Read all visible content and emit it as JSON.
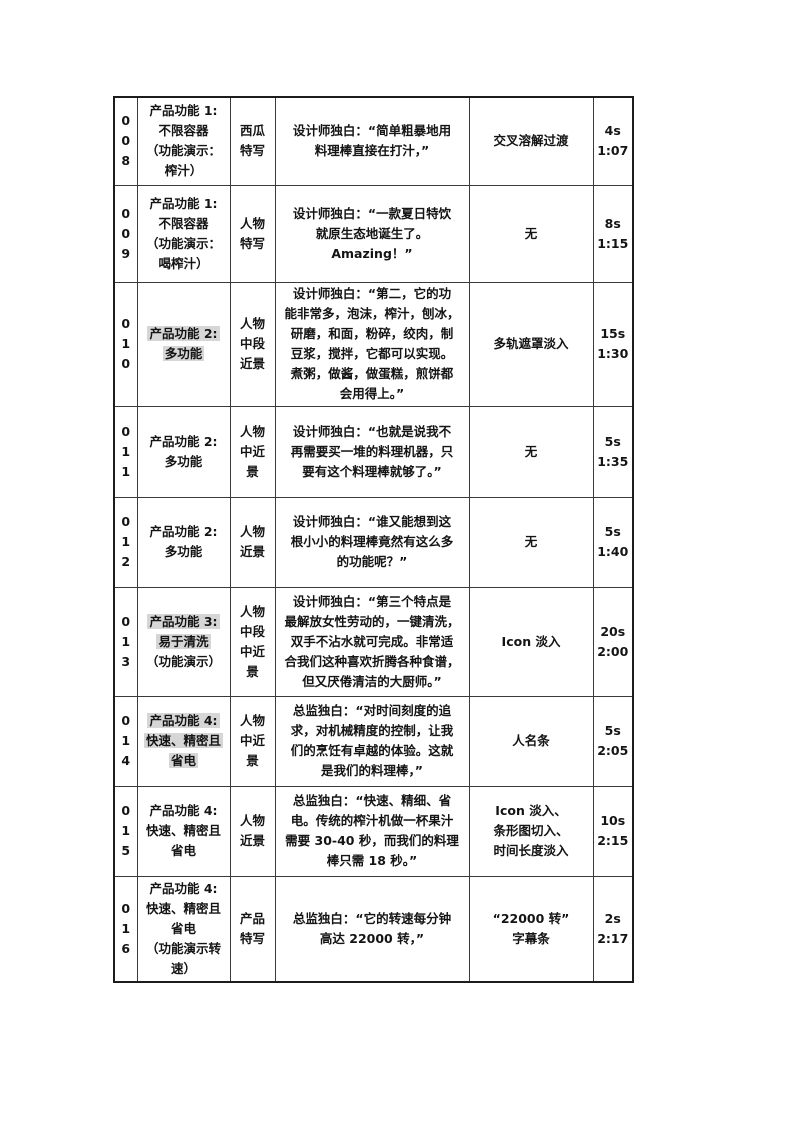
{
  "page": {
    "background": "#ffffff"
  },
  "table": {
    "outer_border_color": "#1c1c1c",
    "inner_border_color": "#3a3a3a",
    "highlight_color": "#d6d6d6",
    "text_color": "#141414",
    "rows": [
      {
        "no": "008",
        "scene": [
          {
            "text": "产品功能 1:",
            "hl": false
          },
          {
            "text": "不限容器",
            "hl": false
          },
          {
            "text": "（功能演示：",
            "hl": false
          },
          {
            "text": "榨汁）",
            "hl": false
          }
        ],
        "shot": "西瓜\n特写",
        "dialogue": "设计师独白：“简单粗暴地用\n料理棒直接在打汁，”",
        "transition": "交叉溶解过渡",
        "duration": "4s",
        "timecode": "1:07"
      },
      {
        "no": "009",
        "scene": [
          {
            "text": "产品功能 1:",
            "hl": false
          },
          {
            "text": "不限容器",
            "hl": false
          },
          {
            "text": "（功能演示：",
            "hl": false
          },
          {
            "text": "喝榨汁）",
            "hl": false
          }
        ],
        "shot": "人物\n特写",
        "dialogue": "设计师独白：“一款夏日特饮\n就原生态地诞生了。\nAmazing！”",
        "transition": "无",
        "duration": "8s",
        "timecode": "1:15"
      },
      {
        "no": "010",
        "scene": [
          {
            "text": "产品功能 2:",
            "hl": true
          },
          {
            "text": "多功能",
            "hl": true
          }
        ],
        "shot": "人物\n中段\n近景",
        "dialogue": "设计师独白：“第二，它的功\n能非常多，泡沫，榨汁，刨冰，\n研磨，和面，粉碎，绞肉，制\n豆浆，搅拌，它都可以实现。\n煮粥，做酱，做蛋糕，煎饼都\n会用得上。”",
        "transition": "多轨遮罩淡入",
        "duration": "15s",
        "timecode": "1:30"
      },
      {
        "no": "011",
        "scene": [
          {
            "text": "产品功能 2:",
            "hl": false
          },
          {
            "text": "多功能",
            "hl": false
          }
        ],
        "shot": "人物\n中近\n景",
        "dialogue": "设计师独白：“也就是说我不\n再需要买一堆的料理机器，只\n要有这个料理棒就够了。”",
        "transition": "无",
        "duration": "5s",
        "timecode": "1:35"
      },
      {
        "no": "012",
        "scene": [
          {
            "text": "产品功能 2:",
            "hl": false
          },
          {
            "text": "多功能",
            "hl": false
          }
        ],
        "shot": "人物\n近景",
        "dialogue": "设计师独白：“谁又能想到这\n根小小的料理棒竟然有这么多\n的功能呢？”",
        "transition": "无",
        "duration": "5s",
        "timecode": "1:40"
      },
      {
        "no": "013",
        "scene": [
          {
            "text": "产品功能 3:",
            "hl": true
          },
          {
            "text": "易于清洗",
            "hl": true
          },
          {
            "text": "（功能演示）",
            "hl": false
          }
        ],
        "shot": "人物\n中段\n中近\n景",
        "dialogue": "设计师独白：“第三个特点是\n最解放女性劳动的，一键清洗，\n双手不沾水就可完成。非常适\n合我们这种喜欢折腾各种食谱，\n但又厌倦清洁的大厨师。”",
        "transition": "Icon 淡入",
        "duration": "20s",
        "timecode": "2:00"
      },
      {
        "no": "014",
        "scene": [
          {
            "text": "产品功能 4:",
            "hl": true
          },
          {
            "text": "快速、精密且",
            "hl": true
          },
          {
            "text": "省电",
            "hl": true
          }
        ],
        "shot": "人物\n中近\n景",
        "dialogue": "总监独白：“对时间刻度的追\n求，对机械精度的控制，让我\n们的烹饪有卓越的体验。这就\n是我们的料理棒，”",
        "transition": "人名条",
        "duration": "5s",
        "timecode": "2:05"
      },
      {
        "no": "015",
        "scene": [
          {
            "text": "产品功能 4:",
            "hl": false
          },
          {
            "text": "快速、精密且",
            "hl": false
          },
          {
            "text": "省电",
            "hl": false
          }
        ],
        "shot": "人物\n近景",
        "dialogue": "总监独白：“快速、精细、省\n电。传统的榨汁机做一杯果汁\n需要 30-40 秒，而我们的料理\n棒只需 18 秒。”",
        "transition": "Icon 淡入、\n条形图切入、\n时间长度淡入",
        "duration": "10s",
        "timecode": "2:15"
      },
      {
        "no": "016",
        "scene": [
          {
            "text": "产品功能 4:",
            "hl": false
          },
          {
            "text": "快速、精密且",
            "hl": false
          },
          {
            "text": "省电",
            "hl": false
          },
          {
            "text": "（功能演示转",
            "hl": false
          },
          {
            "text": "速）",
            "hl": false
          }
        ],
        "shot": "产品\n特写",
        "dialogue": "总监独白：“它的转速每分钟\n高达 22000 转，”",
        "transition": "“22000 转”\n字幕条",
        "duration": "2s",
        "timecode": "2:17"
      }
    ]
  }
}
